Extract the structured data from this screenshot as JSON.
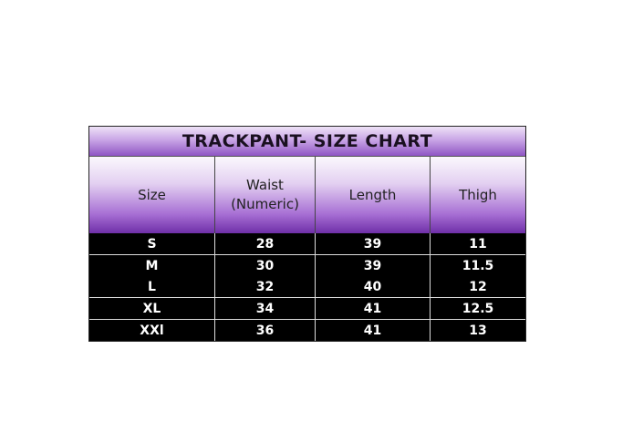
{
  "title": "TRACKPANT- SIZE CHART",
  "columns": [
    "Size",
    "Waist\n(Numeric)",
    "Length",
    "Thigh"
  ],
  "rows": [
    [
      "S",
      "28",
      "39",
      "11"
    ],
    [
      "M",
      "30",
      "39",
      "11.5"
    ],
    [
      "L",
      "32",
      "40",
      "12"
    ],
    [
      "XL",
      "34",
      "41",
      "12.5"
    ],
    [
      "XXl",
      "36",
      "41",
      "13"
    ]
  ],
  "colors": {
    "header_purple": "#7a3fb0",
    "body_bg": "#000000",
    "body_text": "#ffffff"
  }
}
